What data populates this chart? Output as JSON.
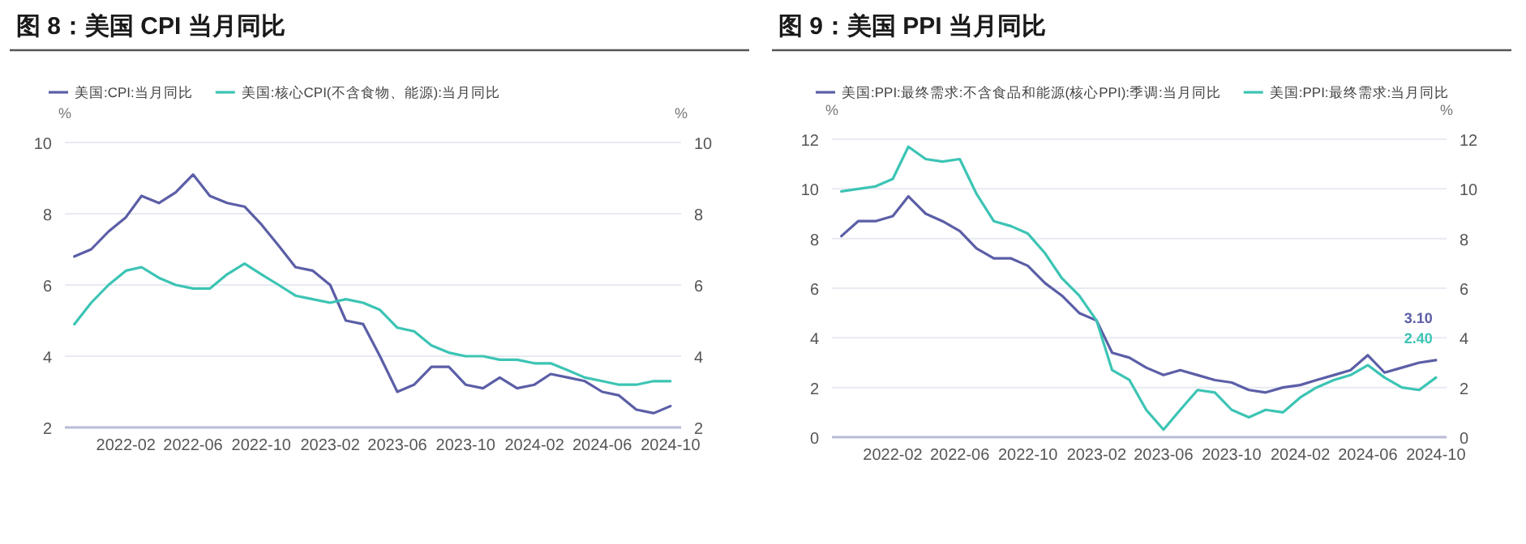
{
  "chart_data": [
    {
      "type": "line",
      "title": "图 8：美国 CPI 当月同比",
      "ylabel": "%",
      "y2label": "%",
      "x": [
        "2021-11",
        "2021-12",
        "2022-01",
        "2022-02",
        "2022-03",
        "2022-04",
        "2022-05",
        "2022-06",
        "2022-07",
        "2022-08",
        "2022-09",
        "2022-10",
        "2022-11",
        "2022-12",
        "2023-01",
        "2023-02",
        "2023-03",
        "2023-04",
        "2023-05",
        "2023-06",
        "2023-07",
        "2023-08",
        "2023-09",
        "2023-10",
        "2023-11",
        "2023-12",
        "2024-01",
        "2024-02",
        "2024-03",
        "2024-04",
        "2024-05",
        "2024-06",
        "2024-07",
        "2024-08",
        "2024-09",
        "2024-10"
      ],
      "series": [
        {
          "name": "美国:CPI:当月同比",
          "color": "#5b5ea6",
          "values": [
            6.8,
            7.0,
            7.5,
            7.9,
            8.5,
            8.3,
            8.6,
            9.1,
            8.5,
            8.3,
            8.2,
            7.7,
            7.1,
            6.5,
            6.4,
            6.0,
            5.0,
            4.9,
            4.0,
            3.0,
            3.2,
            3.7,
            3.7,
            3.2,
            3.1,
            3.4,
            3.1,
            3.2,
            3.5,
            3.4,
            3.3,
            3.0,
            2.9,
            2.5,
            2.4,
            2.6
          ]
        },
        {
          "name": "美国:核心CPI(不含食物、能源):当月同比",
          "color": "#3cc4b4",
          "values": [
            4.9,
            5.5,
            6.0,
            6.4,
            6.5,
            6.2,
            6.0,
            5.9,
            5.9,
            6.3,
            6.6,
            6.3,
            6.0,
            5.7,
            5.6,
            5.5,
            5.6,
            5.5,
            5.3,
            4.8,
            4.7,
            4.3,
            4.1,
            4.0,
            4.0,
            3.9,
            3.9,
            3.8,
            3.8,
            3.6,
            3.4,
            3.3,
            3.2,
            3.2,
            3.3,
            3.3
          ]
        }
      ],
      "xlim": [
        "2021-10-15",
        "2024-10-20"
      ],
      "xticks": [
        "2022-02",
        "2022-06",
        "2022-10",
        "2023-02",
        "2023-06",
        "2023-10",
        "2024-02",
        "2024-06",
        "2024-10"
      ],
      "ylim": [
        2,
        10
      ],
      "yticks": [
        2,
        4,
        6,
        8,
        10
      ],
      "y2lim": [
        2,
        10
      ],
      "y2ticks": [
        2,
        4,
        6,
        8,
        10
      ],
      "grid": "y",
      "legend": "top left",
      "line_style": "solid"
    },
    {
      "type": "line",
      "title": "图 9：美国 PPI 当月同比",
      "ylabel": "%",
      "y2label": "%",
      "x": [
        "2021-11",
        "2021-12",
        "2022-01",
        "2022-02",
        "2022-03",
        "2022-04",
        "2022-05",
        "2022-06",
        "2022-07",
        "2022-08",
        "2022-09",
        "2022-10",
        "2022-11",
        "2022-12",
        "2023-01",
        "2023-02",
        "2023-03",
        "2023-04",
        "2023-05",
        "2023-06",
        "2023-07",
        "2023-08",
        "2023-09",
        "2023-10",
        "2023-11",
        "2023-12",
        "2024-01",
        "2024-02",
        "2024-03",
        "2024-04",
        "2024-05",
        "2024-06",
        "2024-07",
        "2024-08",
        "2024-09",
        "2024-10"
      ],
      "series": [
        {
          "name": "美国:PPI:最终需求:不含食品和能源(核心PPI):季调:当月同比",
          "color": "#5b5ea6",
          "values": [
            8.1,
            8.7,
            8.7,
            8.9,
            9.7,
            9.0,
            8.7,
            8.3,
            7.6,
            7.2,
            7.2,
            6.9,
            6.2,
            5.7,
            5.0,
            4.7,
            3.4,
            3.2,
            2.8,
            2.5,
            2.7,
            2.5,
            2.3,
            2.2,
            1.9,
            1.8,
            2.0,
            2.1,
            2.3,
            2.5,
            2.7,
            3.3,
            2.6,
            2.8,
            3.0,
            3.1
          ],
          "value_labels": [
            null,
            null,
            null,
            null,
            null,
            null,
            null,
            null,
            null,
            null,
            null,
            null,
            null,
            null,
            null,
            null,
            null,
            null,
            null,
            null,
            null,
            null,
            null,
            null,
            null,
            null,
            null,
            null,
            null,
            null,
            null,
            null,
            null,
            null,
            null,
            "3.10"
          ]
        },
        {
          "name": "美国:PPI:最终需求:当月同比",
          "color": "#3cc4b4",
          "values": [
            9.9,
            10.0,
            10.1,
            10.4,
            11.7,
            11.2,
            11.1,
            11.2,
            9.8,
            8.7,
            8.5,
            8.2,
            7.4,
            6.4,
            5.7,
            4.7,
            2.7,
            2.3,
            1.1,
            0.3,
            1.1,
            1.9,
            1.8,
            1.1,
            0.8,
            1.1,
            1.0,
            1.6,
            2.0,
            2.3,
            2.5,
            2.9,
            2.4,
            2.0,
            1.9,
            2.4
          ],
          "value_labels": [
            null,
            null,
            null,
            null,
            null,
            null,
            null,
            null,
            null,
            null,
            null,
            null,
            null,
            null,
            null,
            null,
            null,
            null,
            null,
            null,
            null,
            null,
            null,
            null,
            null,
            null,
            null,
            null,
            null,
            null,
            null,
            null,
            null,
            null,
            null,
            "2.40"
          ]
        }
      ],
      "xlim": [
        "2021-10-15",
        "2024-10-20"
      ],
      "xticks": [
        "2022-02",
        "2022-06",
        "2022-10",
        "2023-02",
        "2023-06",
        "2023-10",
        "2024-02",
        "2024-06",
        "2024-10"
      ],
      "ylim": [
        0,
        12
      ],
      "yticks": [
        0,
        2,
        4,
        6,
        8,
        10,
        12
      ],
      "y2lim": [
        0,
        12
      ],
      "y2ticks": [
        0,
        2,
        4,
        6,
        8,
        10,
        12
      ],
      "grid": "y",
      "legend": "top left",
      "line_style": "solid"
    }
  ]
}
